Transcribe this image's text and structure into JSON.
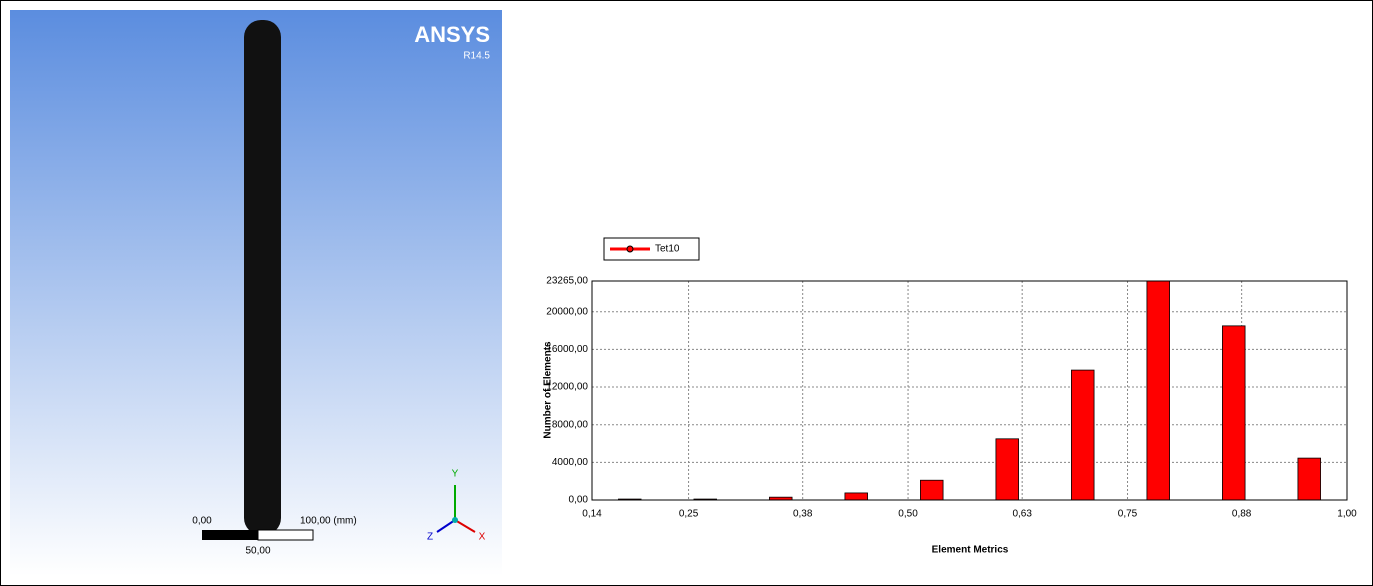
{
  "viewport": {
    "brand": "ANSYS",
    "version": "R14.5",
    "scale_labels": [
      "0,00",
      "100,00 (mm)",
      "50,00"
    ],
    "triad": [
      "Y",
      "Z",
      "X"
    ]
  },
  "chart_data": {
    "type": "histogram",
    "xlabel": "Element Metrics",
    "ylabel": "Number of Elements",
    "bins": [
      0.14,
      0.226,
      0.312,
      0.398,
      0.484,
      0.57,
      0.656,
      0.742,
      0.828,
      0.914,
      1.0
    ],
    "series": [
      {
        "name": "Tet10",
        "color": "#ff0000",
        "values": [
          100,
          100,
          300,
          750,
          2100,
          6500,
          13800,
          23265,
          18500,
          4450
        ]
      }
    ],
    "xlim": [
      0.14,
      1.0
    ],
    "xticks": [
      {
        "value": 0.14,
        "label": "0,14"
      },
      {
        "value": 0.25,
        "label": "0,25"
      },
      {
        "value": 0.38,
        "label": "0,38"
      },
      {
        "value": 0.5,
        "label": "0,50"
      },
      {
        "value": 0.63,
        "label": "0,63"
      },
      {
        "value": 0.75,
        "label": "0,75"
      },
      {
        "value": 0.88,
        "label": "0,88"
      },
      {
        "value": 1.0,
        "label": "1,00"
      }
    ],
    "ylim": [
      0,
      23265
    ],
    "yticks": [
      {
        "value": 0,
        "label": "0,00"
      },
      {
        "value": 4000,
        "label": "4000,00"
      },
      {
        "value": 8000,
        "label": "8000,00"
      },
      {
        "value": 12000,
        "label": "12000,00"
      },
      {
        "value": 16000,
        "label": "16000,00"
      },
      {
        "value": 20000,
        "label": "20000,00"
      },
      {
        "value": 23265,
        "label": "23265,00"
      }
    ],
    "grid": true,
    "legend": "top-left"
  }
}
